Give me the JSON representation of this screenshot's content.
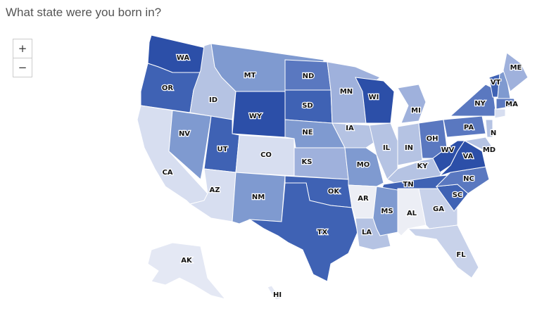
{
  "title": "What state were you born in?",
  "zoom": {
    "in": "+",
    "out": "−"
  },
  "states": [
    {
      "label": "WA",
      "color": "#2c4fa8"
    },
    {
      "label": "OR",
      "color": "#3f62b4"
    },
    {
      "label": "CA",
      "color": "#d7def0"
    },
    {
      "label": "NV",
      "color": "#7f9ad0"
    },
    {
      "label": "ID",
      "color": "#b5c3e3"
    },
    {
      "label": "MT",
      "color": "#7f9ad0"
    },
    {
      "label": "WY",
      "color": "#2c4fa8"
    },
    {
      "label": "UT",
      "color": "#3f62b4"
    },
    {
      "label": "CO",
      "color": "#d7def0"
    },
    {
      "label": "AZ",
      "color": "#d7def0"
    },
    {
      "label": "NM",
      "color": "#7f9ad0"
    },
    {
      "label": "ND",
      "color": "#5a78c0"
    },
    {
      "label": "SD",
      "color": "#3f62b4"
    },
    {
      "label": "NE",
      "color": "#7f9ad0"
    },
    {
      "label": "KS",
      "color": "#9fb1dc"
    },
    {
      "label": "OK",
      "color": "#3f62b4"
    },
    {
      "label": "TX",
      "color": "#3f62b4"
    },
    {
      "label": "MN",
      "color": "#9fb1dc"
    },
    {
      "label": "IA",
      "color": "#b5c3e3"
    },
    {
      "label": "MO",
      "color": "#7f9ad0"
    },
    {
      "label": "AR",
      "color": "#eceef5"
    },
    {
      "label": "LA",
      "color": "#b5c3e3"
    },
    {
      "label": "WI",
      "color": "#2c4fa8"
    },
    {
      "label": "IL",
      "color": "#b5c3e3"
    },
    {
      "label": "MI",
      "color": "#9fb1dc"
    },
    {
      "label": "IN",
      "color": "#b5c3e3"
    },
    {
      "label": "OH",
      "color": "#5a78c0"
    },
    {
      "label": "KY",
      "color": "#b5c3e3"
    },
    {
      "label": "TN",
      "color": "#3f62b4"
    },
    {
      "label": "MS",
      "color": "#7f9ad0"
    },
    {
      "label": "AL",
      "color": "#eceef5"
    },
    {
      "label": "GA",
      "color": "#c8d2ea"
    },
    {
      "label": "FL",
      "color": "#c8d2ea"
    },
    {
      "label": "SC",
      "color": "#3f62b4"
    },
    {
      "label": "NC",
      "color": "#5a78c0"
    },
    {
      "label": "VA",
      "color": "#2c4fa8"
    },
    {
      "label": "WV",
      "color": "#2c4fa8"
    },
    {
      "label": "PA",
      "color": "#5a78c0"
    },
    {
      "label": "NY",
      "color": "#5a78c0"
    },
    {
      "label": "VT",
      "color": "#3f62b4"
    },
    {
      "label": null,
      "color": "#7f9ad0"
    },
    {
      "label": "ME",
      "color": "#9fb1dc"
    },
    {
      "label": "MA",
      "color": "#5a78c0"
    },
    {
      "label": null,
      "color": "#d7def0"
    },
    {
      "label": "N",
      "color": "#b5c3e3"
    },
    {
      "label": "MD",
      "color": "#b5c3e3"
    },
    {
      "label": "AK",
      "color": "#e4e8f4"
    },
    {
      "label": "HI",
      "color": "#e4e8f4"
    }
  ]
}
